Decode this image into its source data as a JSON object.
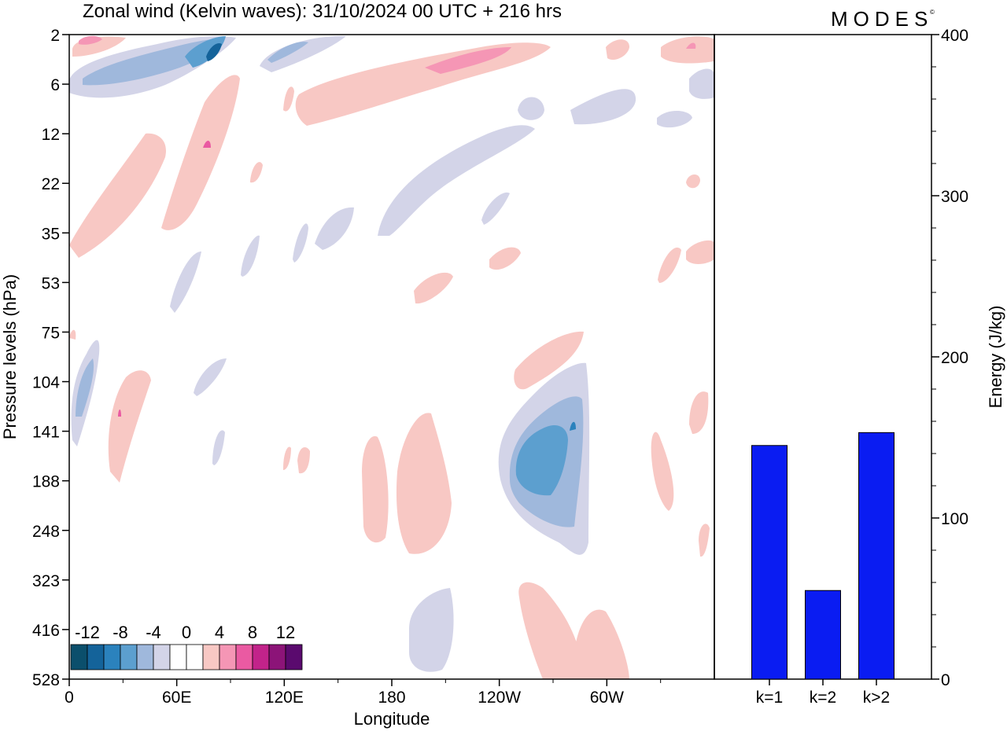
{
  "title": "Zonal wind (Kelvin waves):  31/10/2024  00 UTC  + 216 hrs",
  "logo": "MODES",
  "chart_data": [
    {
      "type": "heatmap",
      "xlabel": "Longitude",
      "ylabel": "Pressure levels (hPa)",
      "x_ticks": [
        "0",
        "60E",
        "120E",
        "180",
        "120W",
        "60W"
      ],
      "x_tick_values": [
        0,
        60,
        120,
        180,
        240,
        300
      ],
      "xlim": [
        0,
        360
      ],
      "y_ticks": [
        "2",
        "6",
        "12",
        "22",
        "35",
        "53",
        "75",
        "104",
        "141",
        "188",
        "248",
        "323",
        "416",
        "528"
      ],
      "colorbar": {
        "labels": [
          "-12",
          "-8",
          "-4",
          "0",
          "4",
          "8",
          "12"
        ],
        "colors": [
          "#0b4f6c",
          "#14639a",
          "#2b82bd",
          "#5c9fcf",
          "#9fb8dc",
          "#d3d4e8",
          "#ffffff",
          "#ffffff",
          "#f8c8c4",
          "#f596b5",
          "#ea5aa2",
          "#c2238a",
          "#8c1478",
          "#5a0a6e"
        ]
      },
      "series": [
        {
          "sign": "positive",
          "x": 10,
          "y": "2",
          "value": 4
        },
        {
          "sign": "negative",
          "x": 50,
          "y": "6",
          "value": -6
        },
        {
          "sign": "negative",
          "x": 75,
          "y": "2",
          "value": -10
        },
        {
          "sign": "positive",
          "x": 215,
          "y": "6",
          "value": 6
        },
        {
          "sign": "positive",
          "x": 70,
          "y": "12",
          "value": 5
        },
        {
          "sign": "negative",
          "x": 190,
          "y": "12",
          "value": -3
        },
        {
          "sign": "negative",
          "x": 10,
          "y": "104",
          "value": -6
        },
        {
          "sign": "positive",
          "x": 25,
          "y": "141",
          "value": 5
        },
        {
          "sign": "negative",
          "x": 255,
          "y": "188",
          "value": -9
        },
        {
          "sign": "positive",
          "x": 190,
          "y": "188",
          "value": 3
        },
        {
          "sign": "positive",
          "x": 265,
          "y": "416",
          "value": 3
        },
        {
          "sign": "negative",
          "x": 180,
          "y": "416",
          "value": -3
        }
      ]
    },
    {
      "type": "bar",
      "categories": [
        "k=1",
        "k=2",
        "k>2"
      ],
      "values": [
        145,
        55,
        153
      ],
      "ylabel": "Energy (J/kg)",
      "ylim": [
        0,
        400
      ],
      "y_ticks": [
        0,
        100,
        200,
        300,
        400
      ],
      "bar_color": "#0a1cf2"
    }
  ]
}
